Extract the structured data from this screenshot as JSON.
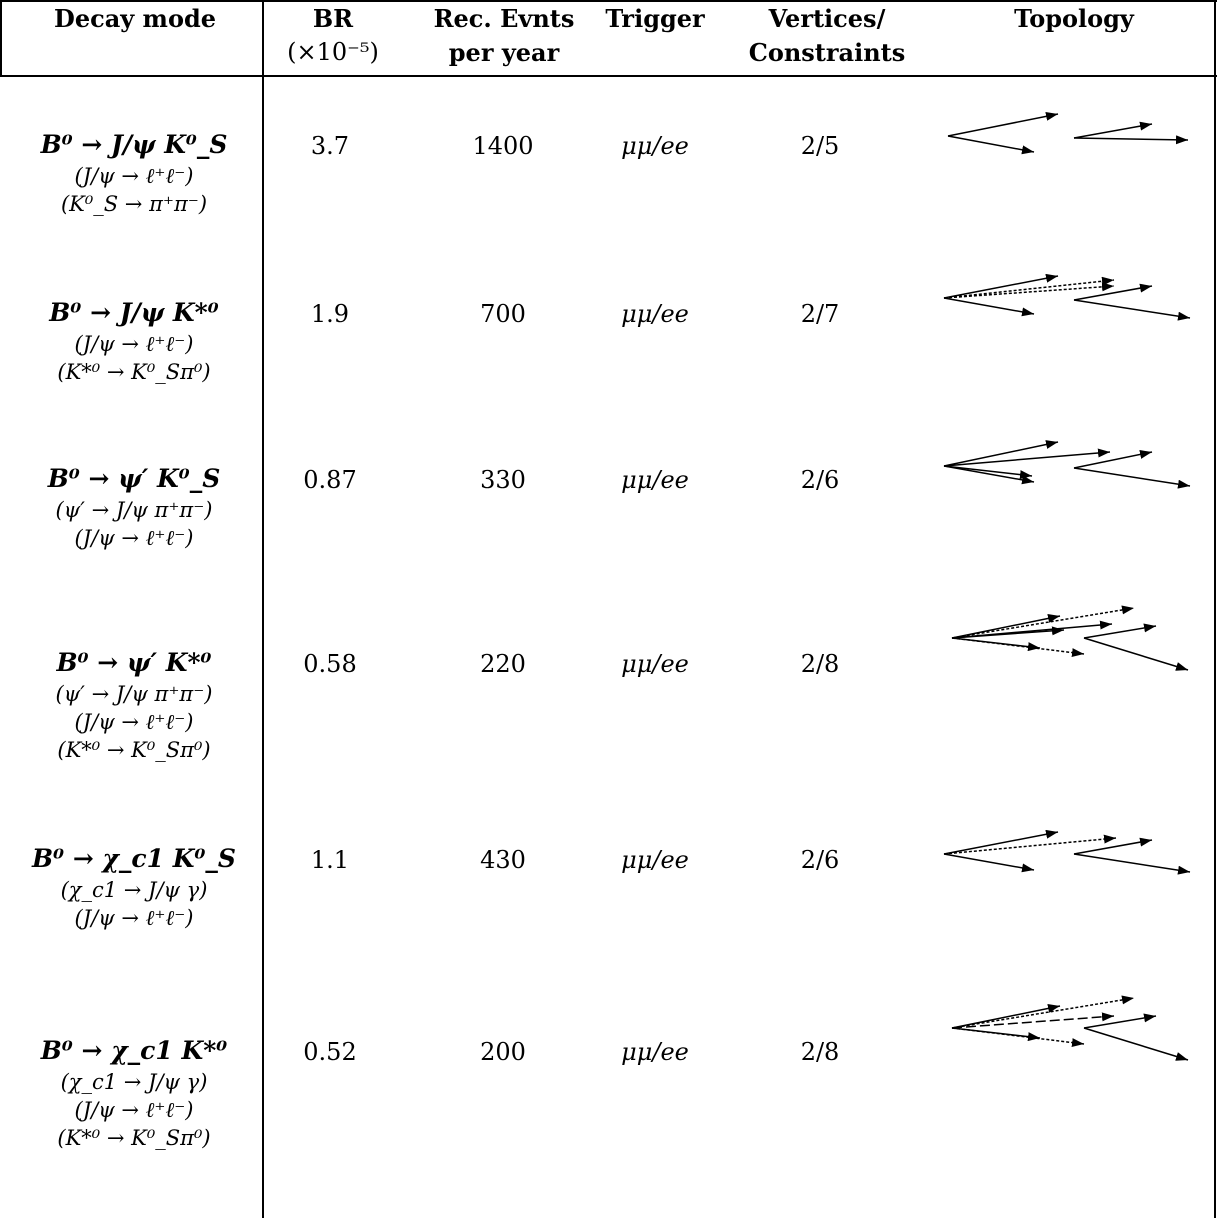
{
  "headers": {
    "decay_mode": "Decay mode",
    "br_line1": "BR",
    "br_line2": "(×10⁻⁵)",
    "events_line1": "Rec. Evnts",
    "events_line2": "per year",
    "trigger": "Trigger",
    "vertices_line1": "Vertices/",
    "vertices_line2": "Constraints",
    "topology": "Topology"
  },
  "rows": [
    {
      "mode": "B⁰ → J/ψ K⁰_S",
      "subdecays": [
        "(J/ψ → ℓ⁺ℓ⁻)",
        "(K⁰_S → π⁺π⁻)"
      ],
      "br": "3.7",
      "events": "1400",
      "trigger": "μμ/ee",
      "vertices": "2/5",
      "topology_icon": "topology-2vertex-4track"
    },
    {
      "mode": "B⁰ → J/ψ K*⁰",
      "subdecays": [
        "(J/ψ → ℓ⁺ℓ⁻)",
        "(K*⁰ → K⁰_Sπ⁰)"
      ],
      "br": "1.9",
      "events": "700",
      "trigger": "μμ/ee",
      "vertices": "2/7",
      "topology_icon": "topology-2vertex-4track-2neutral"
    },
    {
      "mode": "B⁰ → ψ′ K⁰_S",
      "subdecays": [
        "(ψ′ → J/ψ π⁺π⁻)",
        "(J/ψ → ℓ⁺ℓ⁻)"
      ],
      "br": "0.87",
      "events": "330",
      "trigger": "μμ/ee",
      "vertices": "2/6",
      "topology_icon": "topology-2vertex-6track"
    },
    {
      "mode": "B⁰ → ψ′ K*⁰",
      "subdecays": [
        "(ψ′ → J/ψ π⁺π⁻)",
        "(J/ψ → ℓ⁺ℓ⁻)",
        "(K*⁰ → K⁰_Sπ⁰)"
      ],
      "br": "0.58",
      "events": "220",
      "trigger": "μμ/ee",
      "vertices": "2/8",
      "topology_icon": "topology-2vertex-6track-2neutral"
    },
    {
      "mode": "B⁰ → χ_c1 K⁰_S",
      "subdecays": [
        "(χ_c1 → J/ψ γ)",
        "(J/ψ → ℓ⁺ℓ⁻)"
      ],
      "br": "1.1",
      "events": "430",
      "trigger": "μμ/ee",
      "vertices": "2/6",
      "topology_icon": "topology-2vertex-4track-1photon"
    },
    {
      "mode": "B⁰ → χ_c1 K*⁰",
      "subdecays": [
        "(χ_c1 → J/ψ γ)",
        "(J/ψ → ℓ⁺ℓ⁻)",
        "(K*⁰ → K⁰_Sπ⁰)"
      ],
      "br": "0.52",
      "events": "200",
      "trigger": "μμ/ee",
      "vertices": "2/8",
      "topology_icon": "topology-2vertex-4track-photon-neutral"
    }
  ]
}
